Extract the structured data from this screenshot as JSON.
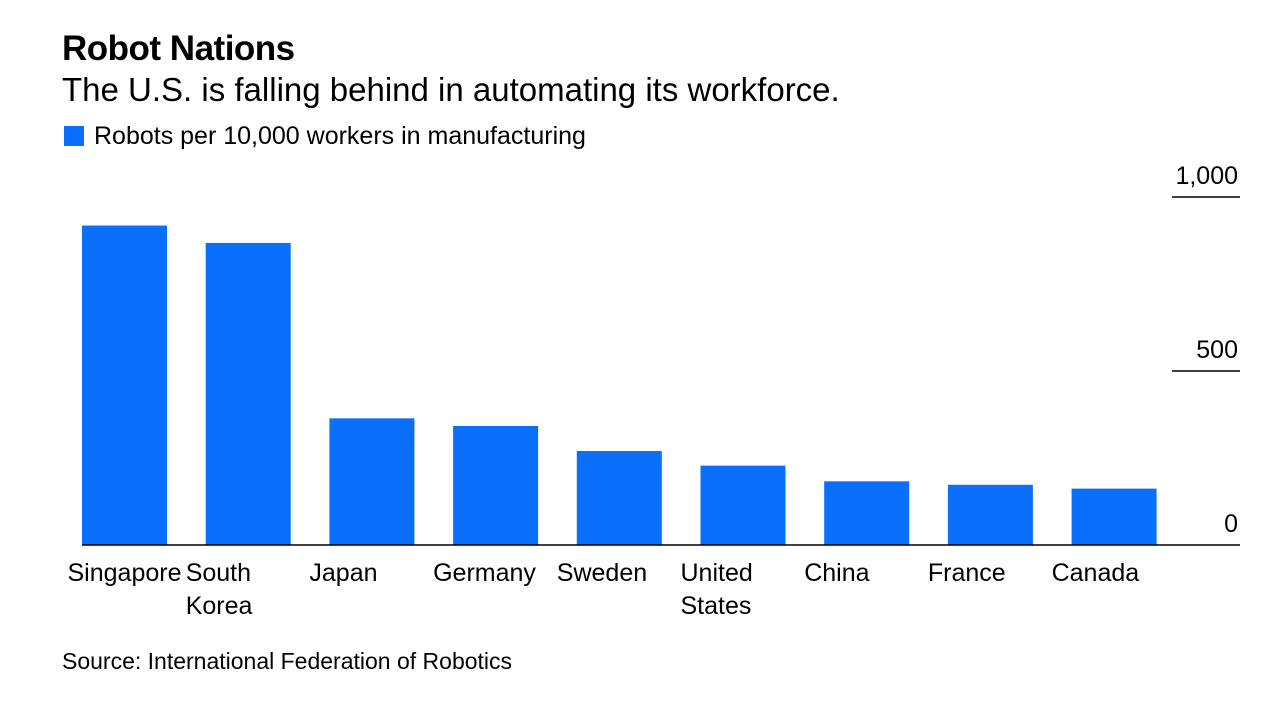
{
  "title": "Robot Nations",
  "subtitle": "The U.S. is falling behind in automating its workforce.",
  "source": "Source: International Federation of Robotics",
  "colors": {
    "bar": "#0a6ffb",
    "axis": "#000000",
    "text": "#000000"
  },
  "chart_data": {
    "type": "bar",
    "categories": [
      "Singapore",
      "South Korea",
      "Japan",
      "Germany",
      "Sweden",
      "United States",
      "China",
      "France",
      "Canada"
    ],
    "category_label_lines": [
      [
        "Singapore"
      ],
      [
        "South",
        "Korea"
      ],
      [
        "Japan"
      ],
      [
        "Germany"
      ],
      [
        "Sweden"
      ],
      [
        "United",
        "States"
      ],
      [
        "China"
      ],
      [
        "France"
      ],
      [
        "Canada"
      ]
    ],
    "series": [
      {
        "name": "Robots per 10,000 workers in manufacturing",
        "values": [
          918,
          868,
          364,
          342,
          270,
          228,
          183,
          173,
          162
        ]
      }
    ],
    "ylim": [
      0,
      1000
    ],
    "yticks": [
      {
        "value": 0,
        "label": "0"
      },
      {
        "value": 500,
        "label": "500"
      },
      {
        "value": 1000,
        "label": "1,000"
      }
    ],
    "grid": false,
    "legend_position": "top-left",
    "y_axis_position": "right"
  }
}
